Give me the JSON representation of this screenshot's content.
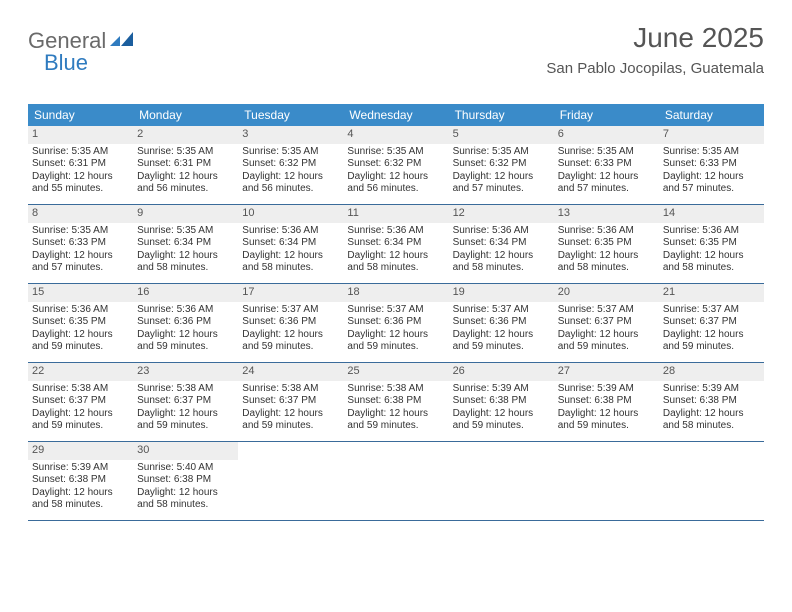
{
  "logo": {
    "text1": "General",
    "text2": "Blue"
  },
  "header": {
    "month_title": "June 2025",
    "location": "San Pablo Jocopilas, Guatemala"
  },
  "colors": {
    "header_bg": "#3a8bc9",
    "header_text": "#ffffff",
    "daynum_bg": "#eeeeee",
    "week_border": "#3a6b9a",
    "title_color": "#555555",
    "body_text": "#333333",
    "logo_gray": "#6a6a6a",
    "logo_blue": "#2f7bbf"
  },
  "typography": {
    "month_title_size": 28,
    "location_size": 15,
    "weekday_size": 12,
    "daynum_size": 11,
    "body_size": 10
  },
  "weekdays": [
    "Sunday",
    "Monday",
    "Tuesday",
    "Wednesday",
    "Thursday",
    "Friday",
    "Saturday"
  ],
  "labels": {
    "sunrise": "Sunrise: ",
    "sunset": "Sunset: ",
    "daylight": "Daylight: "
  },
  "days": [
    {
      "n": "1",
      "sunrise": "5:35 AM",
      "sunset": "6:31 PM",
      "daylight": "12 hours and 55 minutes."
    },
    {
      "n": "2",
      "sunrise": "5:35 AM",
      "sunset": "6:31 PM",
      "daylight": "12 hours and 56 minutes."
    },
    {
      "n": "3",
      "sunrise": "5:35 AM",
      "sunset": "6:32 PM",
      "daylight": "12 hours and 56 minutes."
    },
    {
      "n": "4",
      "sunrise": "5:35 AM",
      "sunset": "6:32 PM",
      "daylight": "12 hours and 56 minutes."
    },
    {
      "n": "5",
      "sunrise": "5:35 AM",
      "sunset": "6:32 PM",
      "daylight": "12 hours and 57 minutes."
    },
    {
      "n": "6",
      "sunrise": "5:35 AM",
      "sunset": "6:33 PM",
      "daylight": "12 hours and 57 minutes."
    },
    {
      "n": "7",
      "sunrise": "5:35 AM",
      "sunset": "6:33 PM",
      "daylight": "12 hours and 57 minutes."
    },
    {
      "n": "8",
      "sunrise": "5:35 AM",
      "sunset": "6:33 PM",
      "daylight": "12 hours and 57 minutes."
    },
    {
      "n": "9",
      "sunrise": "5:35 AM",
      "sunset": "6:34 PM",
      "daylight": "12 hours and 58 minutes."
    },
    {
      "n": "10",
      "sunrise": "5:36 AM",
      "sunset": "6:34 PM",
      "daylight": "12 hours and 58 minutes."
    },
    {
      "n": "11",
      "sunrise": "5:36 AM",
      "sunset": "6:34 PM",
      "daylight": "12 hours and 58 minutes."
    },
    {
      "n": "12",
      "sunrise": "5:36 AM",
      "sunset": "6:34 PM",
      "daylight": "12 hours and 58 minutes."
    },
    {
      "n": "13",
      "sunrise": "5:36 AM",
      "sunset": "6:35 PM",
      "daylight": "12 hours and 58 minutes."
    },
    {
      "n": "14",
      "sunrise": "5:36 AM",
      "sunset": "6:35 PM",
      "daylight": "12 hours and 58 minutes."
    },
    {
      "n": "15",
      "sunrise": "5:36 AM",
      "sunset": "6:35 PM",
      "daylight": "12 hours and 59 minutes."
    },
    {
      "n": "16",
      "sunrise": "5:36 AM",
      "sunset": "6:36 PM",
      "daylight": "12 hours and 59 minutes."
    },
    {
      "n": "17",
      "sunrise": "5:37 AM",
      "sunset": "6:36 PM",
      "daylight": "12 hours and 59 minutes."
    },
    {
      "n": "18",
      "sunrise": "5:37 AM",
      "sunset": "6:36 PM",
      "daylight": "12 hours and 59 minutes."
    },
    {
      "n": "19",
      "sunrise": "5:37 AM",
      "sunset": "6:36 PM",
      "daylight": "12 hours and 59 minutes."
    },
    {
      "n": "20",
      "sunrise": "5:37 AM",
      "sunset": "6:37 PM",
      "daylight": "12 hours and 59 minutes."
    },
    {
      "n": "21",
      "sunrise": "5:37 AM",
      "sunset": "6:37 PM",
      "daylight": "12 hours and 59 minutes."
    },
    {
      "n": "22",
      "sunrise": "5:38 AM",
      "sunset": "6:37 PM",
      "daylight": "12 hours and 59 minutes."
    },
    {
      "n": "23",
      "sunrise": "5:38 AM",
      "sunset": "6:37 PM",
      "daylight": "12 hours and 59 minutes."
    },
    {
      "n": "24",
      "sunrise": "5:38 AM",
      "sunset": "6:37 PM",
      "daylight": "12 hours and 59 minutes."
    },
    {
      "n": "25",
      "sunrise": "5:38 AM",
      "sunset": "6:38 PM",
      "daylight": "12 hours and 59 minutes."
    },
    {
      "n": "26",
      "sunrise": "5:39 AM",
      "sunset": "6:38 PM",
      "daylight": "12 hours and 59 minutes."
    },
    {
      "n": "27",
      "sunrise": "5:39 AM",
      "sunset": "6:38 PM",
      "daylight": "12 hours and 59 minutes."
    },
    {
      "n": "28",
      "sunrise": "5:39 AM",
      "sunset": "6:38 PM",
      "daylight": "12 hours and 58 minutes."
    },
    {
      "n": "29",
      "sunrise": "5:39 AM",
      "sunset": "6:38 PM",
      "daylight": "12 hours and 58 minutes."
    },
    {
      "n": "30",
      "sunrise": "5:40 AM",
      "sunset": "6:38 PM",
      "daylight": "12 hours and 58 minutes."
    }
  ],
  "layout": {
    "start_weekday": 0,
    "weeks": 5
  }
}
